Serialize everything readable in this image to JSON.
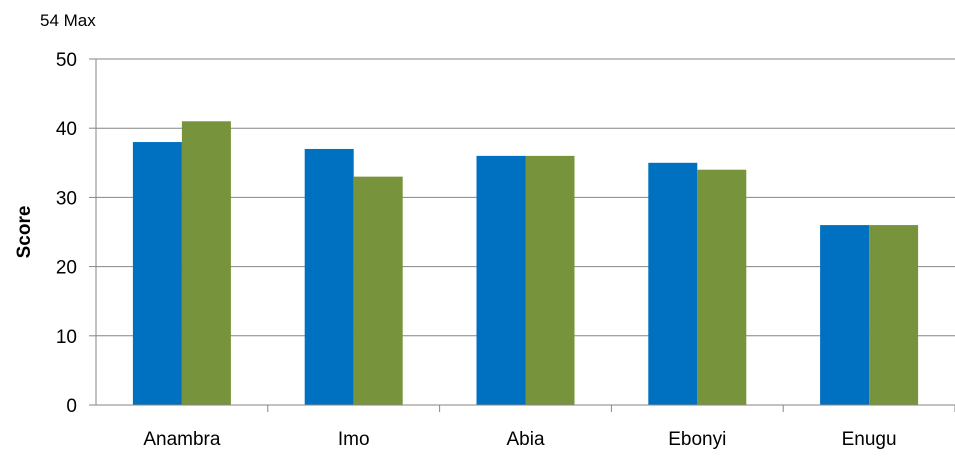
{
  "chart_data": {
    "type": "bar",
    "annotation": "54 Max",
    "ylabel": "Score",
    "xlabel": "",
    "categories": [
      "Anambra",
      "Imo",
      "Abia",
      "Ebonyi",
      "Enugu"
    ],
    "ylim": [
      0,
      50
    ],
    "yticks": [
      0,
      10,
      20,
      30,
      40,
      50
    ],
    "grid": true,
    "series": [
      {
        "color": "#0070C0",
        "values": [
          38,
          37,
          36,
          35,
          26
        ]
      },
      {
        "color": "#77933C",
        "values": [
          41,
          33,
          36,
          34,
          26
        ]
      }
    ]
  }
}
